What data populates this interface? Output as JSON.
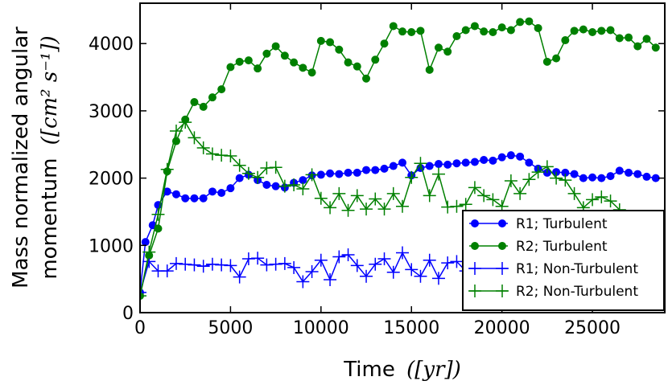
{
  "chart_data": {
    "type": "line",
    "title": "",
    "xlabel": "Time",
    "xlabel_unit": "([yr])",
    "ylabel_line1": "Mass normalized angular",
    "ylabel_line2": "momentum",
    "ylabel_unit": "([cm² s⁻¹])",
    "xlim": [
      0,
      29000
    ],
    "ylim": [
      0,
      4600
    ],
    "xticks": [
      0,
      5000,
      10000,
      15000,
      20000,
      25000
    ],
    "yticks": [
      0,
      1000,
      2000,
      3000,
      4000
    ],
    "legend_position": "lower-right",
    "series": [
      {
        "name": "R1; Turbulent",
        "color": "#0000ff",
        "marker": "circle",
        "x": [
          0,
          300,
          700,
          1000,
          1500,
          2000,
          2500,
          3000,
          3500,
          4000,
          4500,
          5000,
          5500,
          6000,
          6500,
          7000,
          7500,
          8000,
          8500,
          9000,
          9500,
          10000,
          10500,
          11000,
          11500,
          12000,
          12500,
          13000,
          13500,
          14000,
          14500,
          15000,
          15500,
          16000,
          16500,
          17000,
          17500,
          18000,
          18500,
          19000,
          19500,
          20000,
          20500,
          21000,
          21500,
          22000,
          22500,
          23000,
          23500,
          24000,
          24500,
          25000,
          25500,
          26000,
          26500,
          27000,
          27500,
          28000,
          28500
        ],
        "y": [
          300,
          1050,
          1300,
          1600,
          1800,
          1760,
          1700,
          1700,
          1700,
          1800,
          1780,
          1850,
          2000,
          2050,
          1970,
          1900,
          1880,
          1860,
          1930,
          1970,
          2040,
          2050,
          2070,
          2060,
          2080,
          2080,
          2120,
          2120,
          2140,
          2180,
          2230,
          2040,
          2150,
          2180,
          2210,
          2200,
          2220,
          2230,
          2240,
          2270,
          2260,
          2310,
          2340,
          2320,
          2230,
          2140,
          2080,
          2090,
          2080,
          2060,
          2000,
          2010,
          2000,
          2030,
          2110,
          2080,
          2060,
          2020,
          2000
        ]
      },
      {
        "name": "R2; Turbulent",
        "color": "#008000",
        "marker": "circle",
        "x": [
          0,
          500,
          1000,
          1500,
          2000,
          2500,
          3000,
          3500,
          4000,
          4500,
          5000,
          5500,
          6000,
          6500,
          7000,
          7500,
          8000,
          8500,
          9000,
          9500,
          10000,
          10500,
          11000,
          11500,
          12000,
          12500,
          13000,
          13500,
          14000,
          14500,
          15000,
          15500,
          16000,
          16500,
          17000,
          17500,
          18000,
          18500,
          19000,
          19500,
          20000,
          20500,
          21000,
          21500,
          22000,
          22500,
          23000,
          23500,
          24000,
          24500,
          25000,
          25500,
          26000,
          26500,
          27000,
          27500,
          28000,
          28500
        ],
        "y": [
          250,
          850,
          1250,
          2100,
          2550,
          2870,
          3130,
          3060,
          3200,
          3320,
          3650,
          3730,
          3750,
          3630,
          3850,
          3960,
          3820,
          3720,
          3640,
          3570,
          4040,
          4020,
          3910,
          3720,
          3660,
          3480,
          3760,
          4000,
          4260,
          4180,
          4170,
          4190,
          3610,
          3940,
          3880,
          4110,
          4200,
          4260,
          4180,
          4170,
          4240,
          4200,
          4320,
          4330,
          4230,
          3730,
          3780,
          4050,
          4190,
          4210,
          4170,
          4190,
          4200,
          4080,
          4090,
          3960,
          4070,
          3940
        ]
      },
      {
        "name": "R1; Non-Turbulent",
        "color": "#0000ff",
        "marker": "plus",
        "x": [
          0,
          500,
          1000,
          1500,
          2000,
          2500,
          3000,
          3500,
          4000,
          4500,
          5000,
          5500,
          6000,
          6500,
          7000,
          7500,
          8000,
          8500,
          9000,
          9500,
          10000,
          10500,
          11000,
          11500,
          12000,
          12500,
          13000,
          13500,
          14000,
          14500,
          15000,
          15500,
          16000,
          16500,
          17000,
          17500,
          18000,
          18500,
          19000,
          19500,
          20000,
          20500,
          21000
        ],
        "y": [
          300,
          760,
          620,
          620,
          730,
          720,
          710,
          690,
          720,
          710,
          700,
          530,
          800,
          810,
          710,
          720,
          730,
          670,
          460,
          610,
          780,
          490,
          830,
          860,
          700,
          540,
          720,
          800,
          600,
          890,
          640,
          540,
          780,
          510,
          740,
          760,
          620,
          710,
          720,
          760,
          730,
          700,
          720
        ]
      },
      {
        "name": "R2; Non-Turbulent",
        "color": "#008000",
        "marker": "plus",
        "x": [
          0,
          500,
          1000,
          1500,
          2000,
          2500,
          3000,
          3500,
          4000,
          4500,
          5000,
          5500,
          6000,
          6500,
          7000,
          7500,
          8000,
          8500,
          9000,
          9500,
          10000,
          10500,
          11000,
          11500,
          12000,
          12500,
          13000,
          13500,
          14000,
          14500,
          15000,
          15500,
          16000,
          16500,
          17000,
          17500,
          18000,
          18500,
          19000,
          19500,
          20000,
          20500,
          21000,
          21500,
          22000,
          22500,
          23000,
          23500,
          24000,
          24500,
          25000,
          25500,
          26000,
          26500
        ],
        "y": [
          250,
          900,
          1460,
          2130,
          2700,
          2830,
          2600,
          2450,
          2360,
          2340,
          2330,
          2190,
          2070,
          2010,
          2150,
          2160,
          1880,
          1900,
          1840,
          2050,
          1700,
          1560,
          1770,
          1520,
          1740,
          1540,
          1690,
          1540,
          1770,
          1580,
          2010,
          2220,
          1740,
          2060,
          1570,
          1580,
          1610,
          1860,
          1740,
          1680,
          1580,
          1960,
          1770,
          1980,
          2090,
          2170,
          2000,
          1970,
          1770,
          1560,
          1680,
          1720,
          1660,
          1530
        ]
      }
    ]
  }
}
